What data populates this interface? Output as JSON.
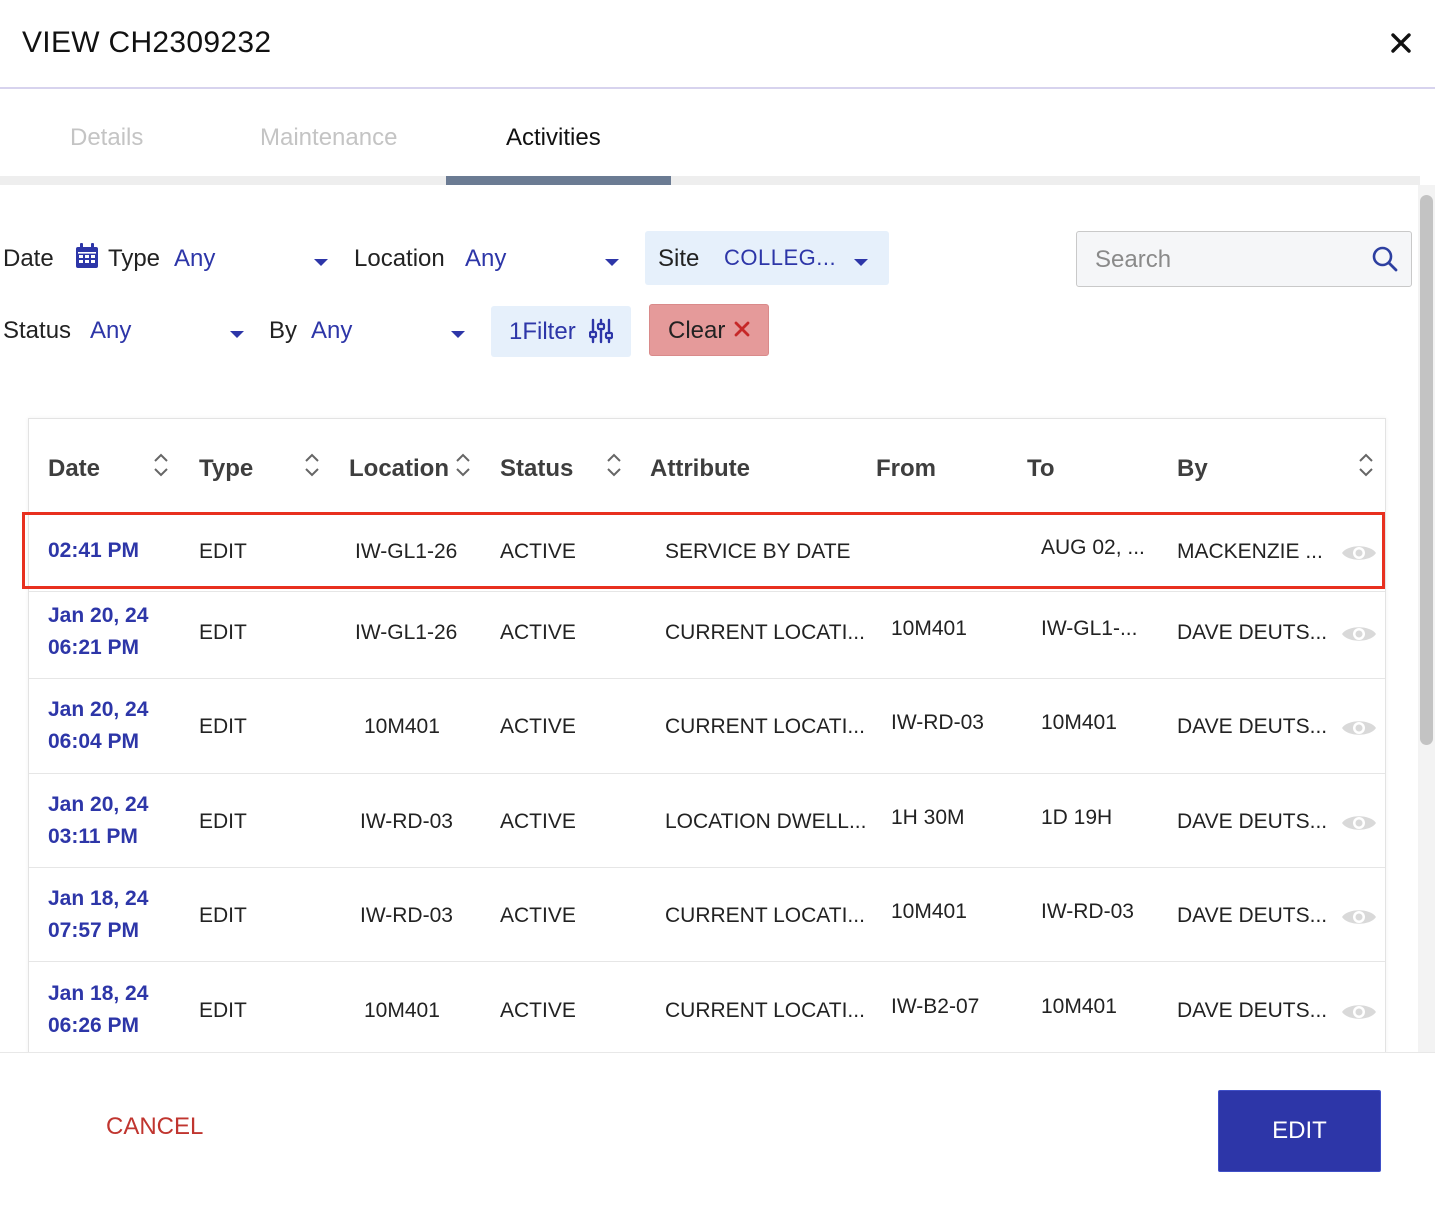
{
  "header": {
    "title": "VIEW CH2309232"
  },
  "tabs": [
    {
      "label": "Details",
      "active": false
    },
    {
      "label": "Maintenance",
      "active": false
    },
    {
      "label": "Activities",
      "active": true
    }
  ],
  "filters": {
    "date_label": "Date",
    "type_label": "Type",
    "type_value": "Any",
    "location_label": "Location",
    "location_value": "Any",
    "site_label": "Site",
    "site_value": "COLLEG...",
    "status_label": "Status",
    "status_value": "Any",
    "by_label": "By",
    "by_value": "Any",
    "filter_button": "1Filter",
    "clear_button": "Clear",
    "search_placeholder": "Search"
  },
  "table": {
    "columns": [
      "Date",
      "Type",
      "Location",
      "Status",
      "Attribute",
      "From",
      "To",
      "By"
    ],
    "rows": [
      {
        "date1": "02:41 PM",
        "date2": "",
        "type": "EDIT",
        "location": "IW-GL1-26",
        "status": "ACTIVE",
        "attribute": "SERVICE BY DATE",
        "from": "",
        "to": "AUG 02, ...",
        "by": "MACKENZIE ..."
      },
      {
        "date1": "Jan 20, 24",
        "date2": "06:21 PM",
        "type": "EDIT",
        "location": "IW-GL1-26",
        "status": "ACTIVE",
        "attribute": "CURRENT LOCATI...",
        "from": "10M401",
        "to": "IW-GL1-...",
        "by": "DAVE DEUTS..."
      },
      {
        "date1": "Jan 20, 24",
        "date2": "06:04 PM",
        "type": "EDIT",
        "location": "10M401",
        "status": "ACTIVE",
        "attribute": "CURRENT LOCATI...",
        "from": "IW-RD-03",
        "to": "10M401",
        "by": "DAVE DEUTS..."
      },
      {
        "date1": "Jan 20, 24",
        "date2": "03:11 PM",
        "type": "EDIT",
        "location": "IW-RD-03",
        "status": "ACTIVE",
        "attribute": "LOCATION DWELL...",
        "from": "1H 30M",
        "to": "1D 19H",
        "by": "DAVE DEUTS..."
      },
      {
        "date1": "Jan 18, 24",
        "date2": "07:57 PM",
        "type": "EDIT",
        "location": "IW-RD-03",
        "status": "ACTIVE",
        "attribute": "CURRENT LOCATI...",
        "from": "10M401",
        "to": "IW-RD-03",
        "by": "DAVE DEUTS..."
      },
      {
        "date1": "Jan 18, 24",
        "date2": "06:26 PM",
        "type": "EDIT",
        "location": "10M401",
        "status": "ACTIVE",
        "attribute": "CURRENT LOCATI...",
        "from": "IW-B2-07",
        "to": "10M401",
        "by": "DAVE DEUTS..."
      }
    ]
  },
  "footer": {
    "cancel_label": "CANCEL",
    "edit_label": "EDIT"
  },
  "colors": {
    "accent": "#2d36a8",
    "highlight": "#e8301f",
    "clear_bg": "#e59a9a",
    "cancel": "#c0352f"
  },
  "icons": {
    "close": "close-icon",
    "calendar": "calendar-icon",
    "search": "search-icon",
    "filter": "sliders-icon",
    "clear": "x-icon",
    "view": "eye-icon",
    "sort": "sort-icon"
  }
}
